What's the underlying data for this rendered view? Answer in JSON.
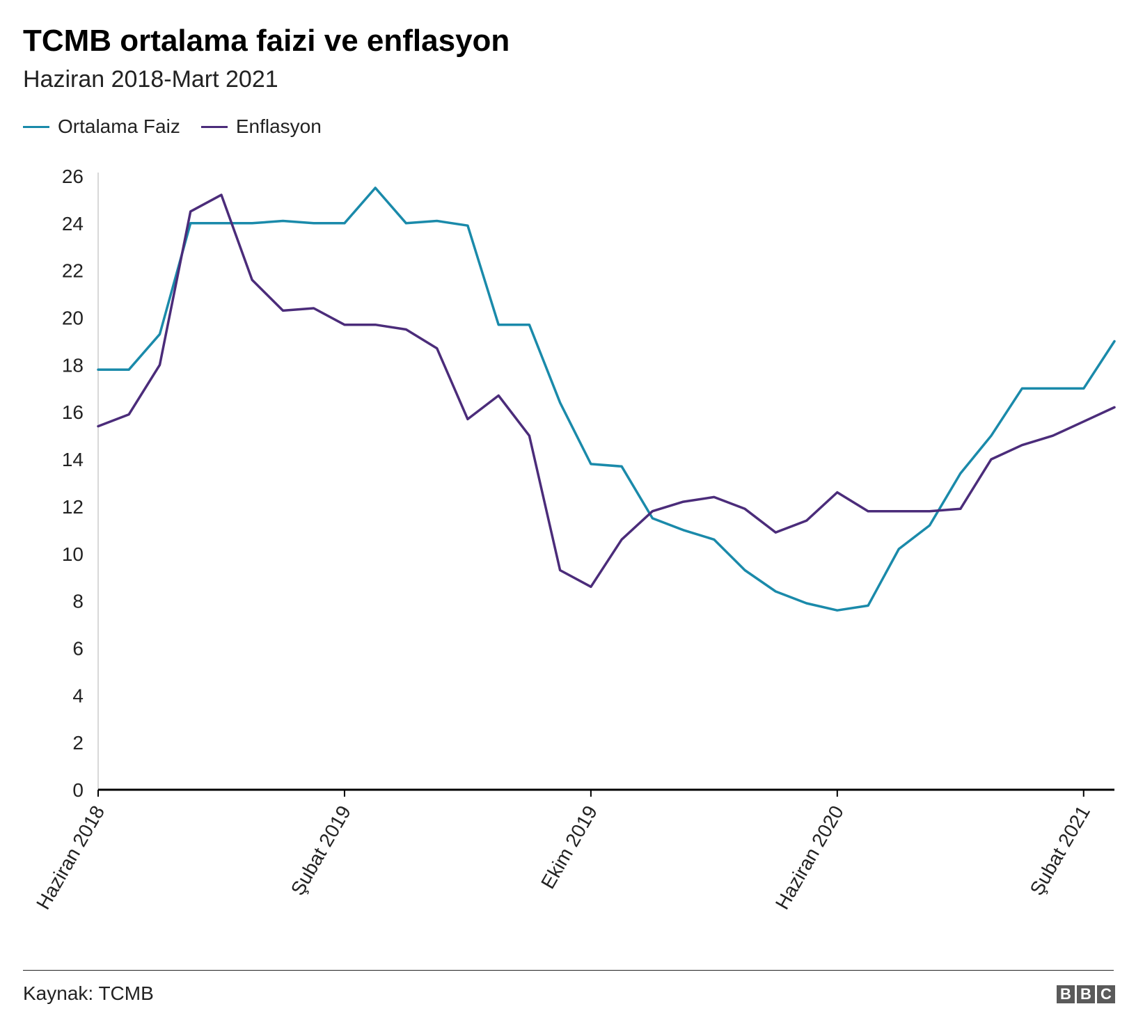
{
  "header": {
    "title": "TCMB ortalama faizi ve enflasyon",
    "subtitle": "Haziran 2018-Mart 2021"
  },
  "footer": {
    "source": "Kaynak: TCMB",
    "logo_letters": [
      "B",
      "B",
      "C"
    ]
  },
  "colors": {
    "faiz": "#1a8aaa",
    "enflasyon": "#4b2c7a",
    "axis": "#000000",
    "grid_axis": "#cccccc"
  },
  "chart_data": {
    "type": "line",
    "x": [
      "2018-06",
      "2018-07",
      "2018-08",
      "2018-09",
      "2018-10",
      "2018-11",
      "2018-12",
      "2019-01",
      "2019-02",
      "2019-03",
      "2019-04",
      "2019-05",
      "2019-06",
      "2019-07",
      "2019-08",
      "2019-09",
      "2019-10",
      "2019-11",
      "2019-12",
      "2020-01",
      "2020-02",
      "2020-03",
      "2020-04",
      "2020-05",
      "2020-06",
      "2020-07",
      "2020-08",
      "2020-09",
      "2020-10",
      "2020-11",
      "2020-12",
      "2021-01",
      "2021-02",
      "2021-03"
    ],
    "x_tick_labels": [
      "Haziran 2018",
      "Şubat 2019",
      "Ekim 2019",
      "Haziran 2020",
      "Şubat 2021"
    ],
    "x_tick_index": [
      0,
      8,
      16,
      24,
      32
    ],
    "series": [
      {
        "name": "Ortalama Faiz",
        "color": "#1a8aaa",
        "values": [
          17.8,
          17.8,
          19.3,
          24.0,
          24.0,
          24.0,
          24.1,
          24.0,
          24.0,
          25.5,
          24.0,
          24.1,
          23.9,
          19.7,
          19.7,
          16.4,
          13.8,
          13.7,
          11.5,
          11.0,
          10.6,
          9.3,
          8.4,
          7.9,
          7.6,
          7.8,
          10.2,
          11.2,
          13.4,
          15.0,
          17.0,
          17.0,
          17.0,
          19.0
        ]
      },
      {
        "name": "Enflasyon",
        "color": "#4b2c7a",
        "values": [
          15.4,
          15.9,
          18.0,
          24.5,
          25.2,
          21.6,
          20.3,
          20.4,
          19.7,
          19.7,
          19.5,
          18.7,
          15.7,
          16.7,
          15.0,
          9.3,
          8.6,
          10.6,
          11.8,
          12.2,
          12.4,
          11.9,
          10.9,
          11.4,
          12.6,
          11.8,
          11.8,
          11.8,
          11.9,
          14.0,
          14.6,
          15.0,
          15.6,
          16.2
        ]
      }
    ],
    "y_ticks": [
      0,
      2,
      4,
      6,
      8,
      10,
      12,
      14,
      16,
      18,
      20,
      22,
      24,
      26
    ],
    "ylim": [
      0,
      26
    ],
    "legend_position": "top-left",
    "grid": false
  }
}
